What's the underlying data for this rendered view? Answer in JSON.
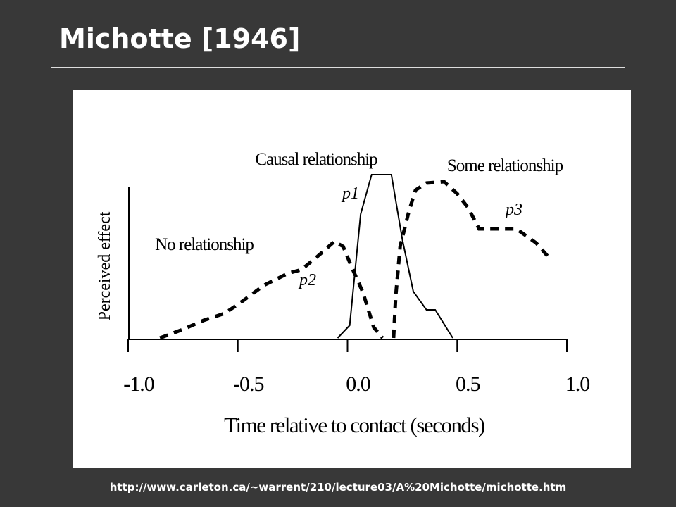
{
  "slide": {
    "title": "Michotte [1946]",
    "source": "http://www.carleton.ca/~warrent/210/lecture03/A%20Michotte/michotte.htm"
  },
  "chart_data": {
    "type": "line",
    "x_label": "Time relative to contact (seconds)",
    "y_label": "Perceived effect",
    "xlim": [
      -1.0,
      1.0
    ],
    "xticks": [
      {
        "value": -1.0,
        "label": "-1.0"
      },
      -0.5,
      {
        "value": 0.0,
        "label": "0.0"
      },
      0.5,
      {
        "value": 1.0,
        "label": "1.0"
      }
    ],
    "ylim": [
      0,
      1.2
    ],
    "annotations": [
      "Causal relationship",
      "Some relationship",
      "No relationship"
    ],
    "series": [
      {
        "name": "p1",
        "color": "#000000",
        "style": "solid",
        "x": [
          -0.045,
          0.01,
          0.06,
          0.11,
          0.2,
          0.25,
          0.3,
          0.36,
          0.4,
          0.48
        ],
        "values": [
          0,
          0.09,
          0.88,
          1.16,
          1.16,
          0.7,
          0.33,
          0.2,
          0.2,
          0
        ]
      },
      {
        "name": "p2",
        "color": "#000000",
        "style": "dashed",
        "x": [
          -0.855,
          -0.752,
          -0.656,
          -0.56,
          -0.48,
          -0.38,
          -0.27,
          -0.21,
          -0.14,
          -0.06,
          -0.02,
          0.02,
          0.07,
          0.12,
          0.16
        ],
        "values": [
          0,
          0.06,
          0.125,
          0.175,
          0.26,
          0.375,
          0.46,
          0.485,
          0.575,
          0.685,
          0.65,
          0.5,
          0.325,
          0.075,
          0
        ]
      },
      {
        "name": "p3",
        "color": "#000000",
        "style": "dashed",
        "x": [
          0.21,
          0.22,
          0.24,
          0.28,
          0.31,
          0.36,
          0.44,
          0.5,
          0.55,
          0.6,
          0.66,
          0.77,
          0.86,
          0.93
        ],
        "values": [
          0,
          0.3,
          0.65,
          0.9,
          1.05,
          1.1,
          1.11,
          1.025,
          0.925,
          0.775,
          0.775,
          0.775,
          0.675,
          0.55
        ]
      }
    ]
  }
}
